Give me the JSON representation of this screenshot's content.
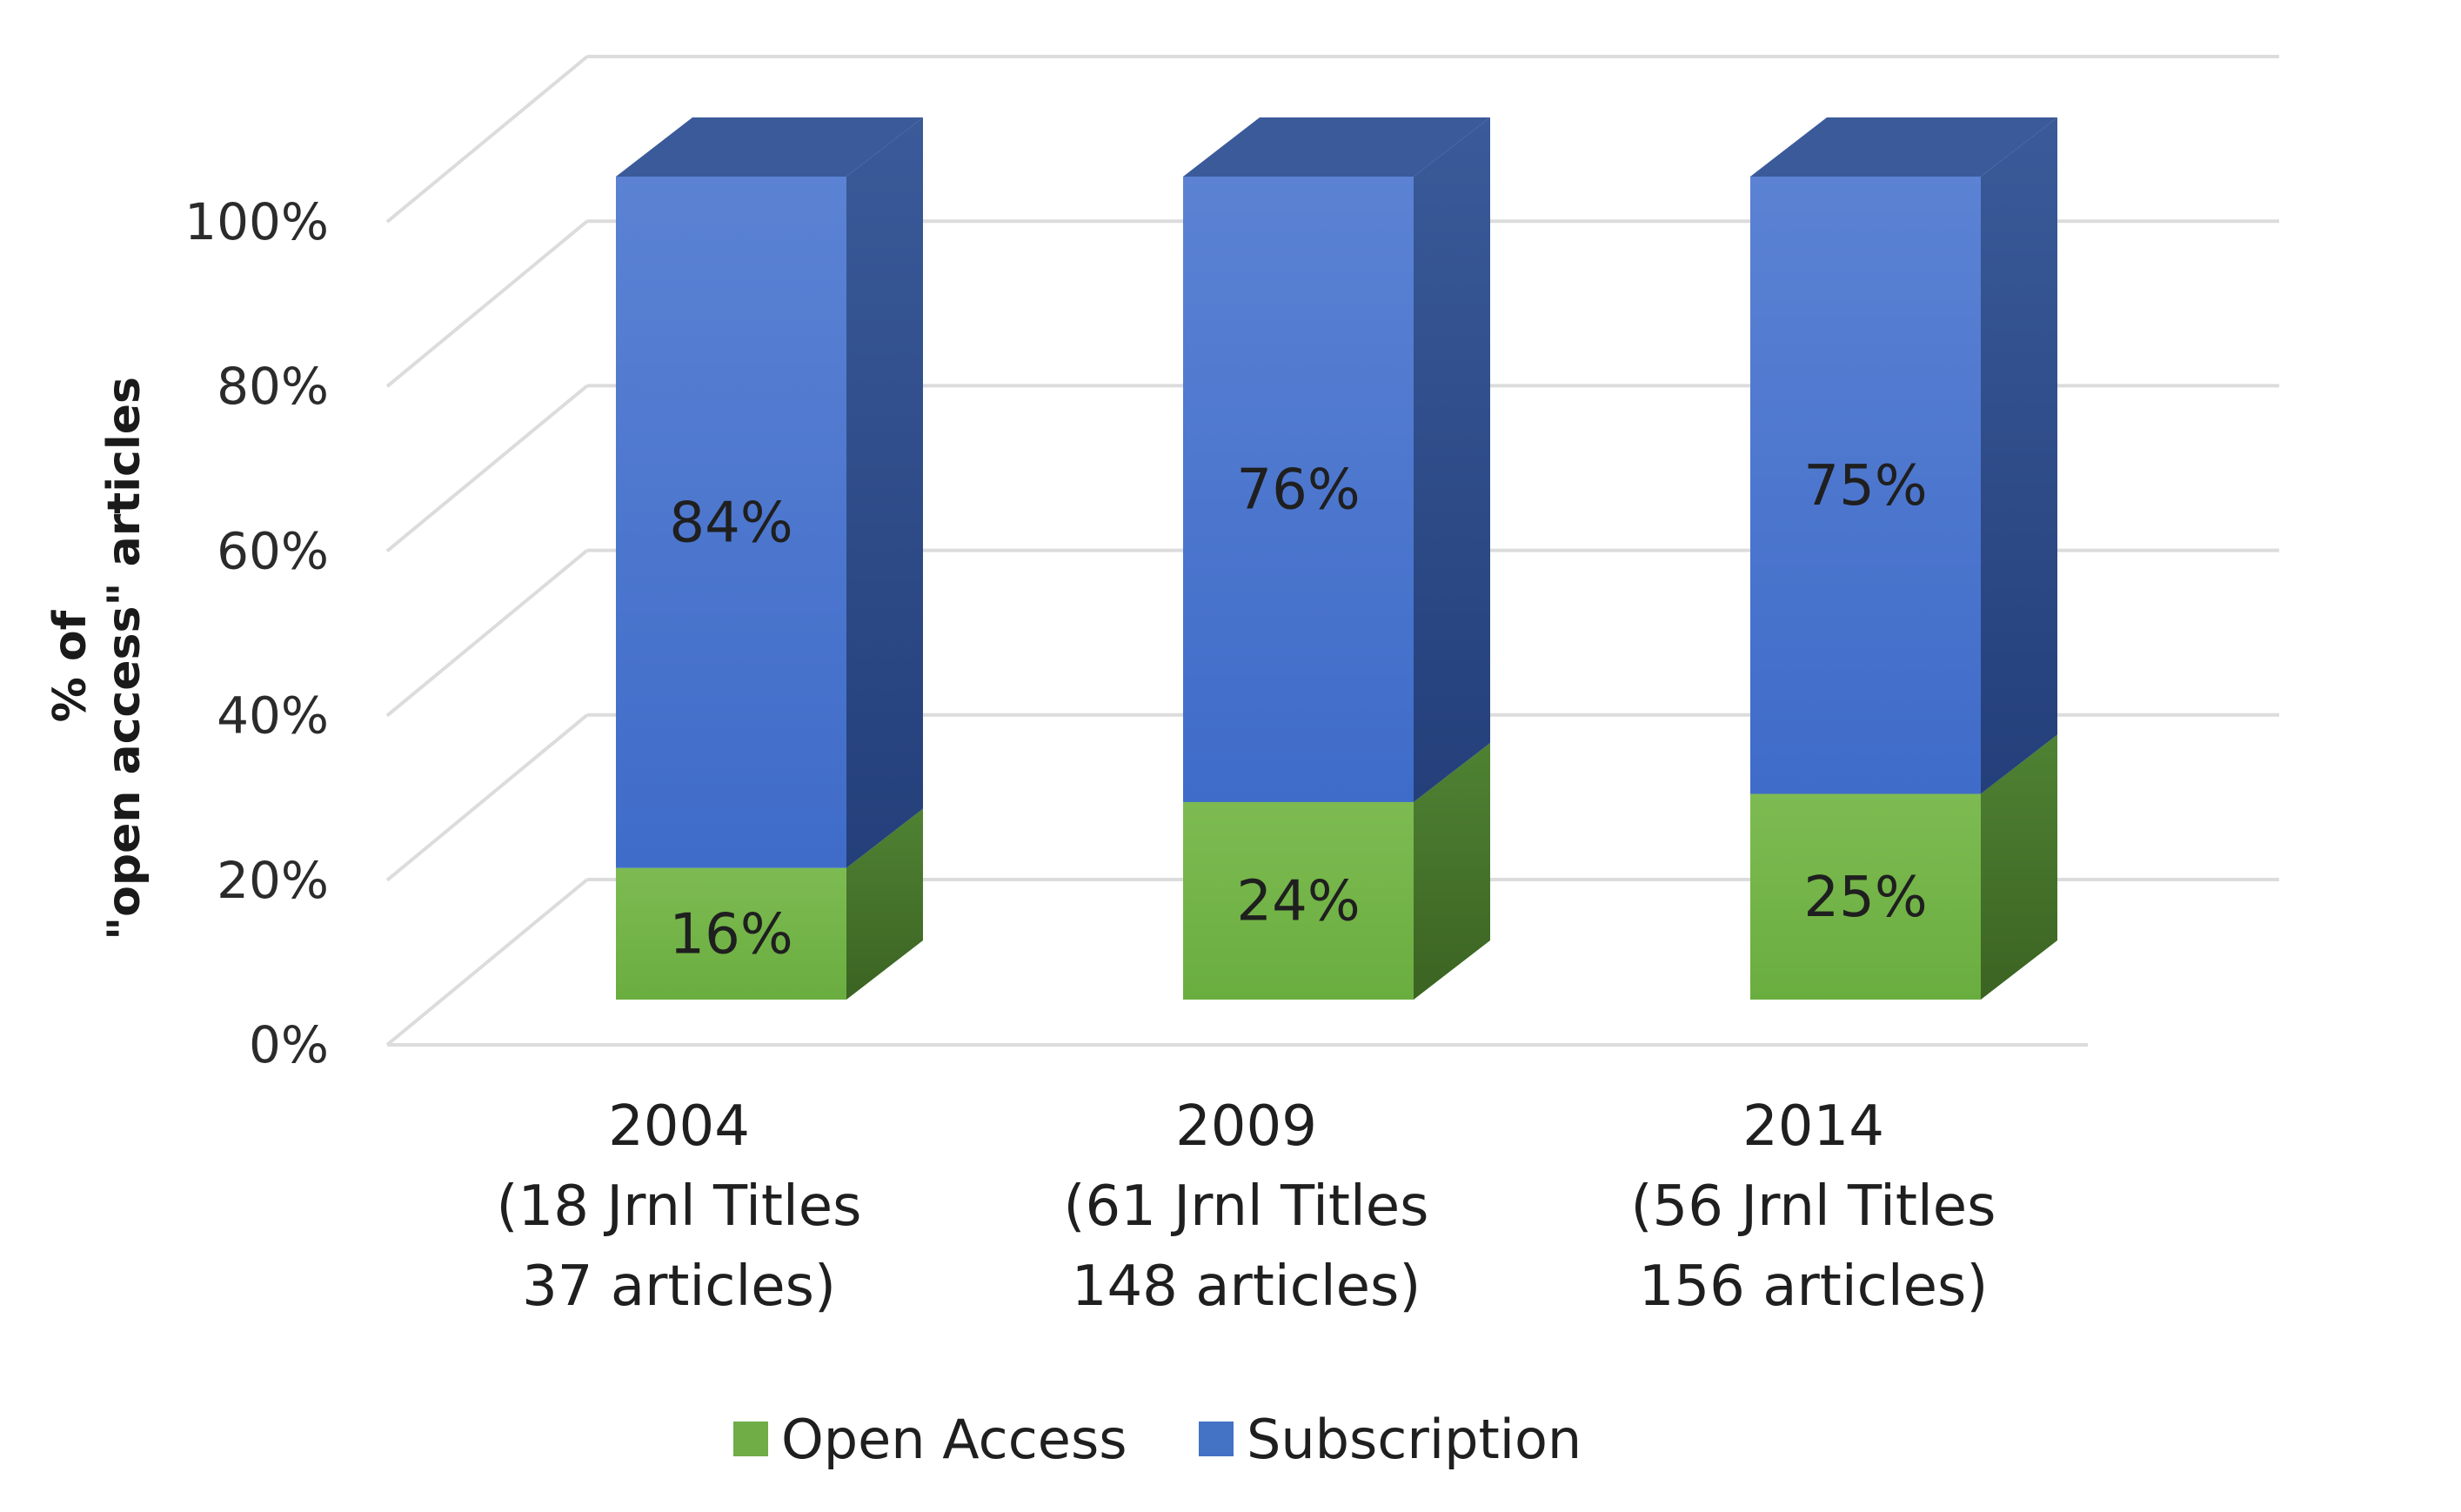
{
  "chart_data": {
    "type": "bar",
    "stacked": true,
    "style": "3d",
    "categories": [
      [
        "2004",
        "(18 Jrnl Titles",
        "37 articles)"
      ],
      [
        "2009",
        "(61 Jrnl Titles",
        "148 articles)"
      ],
      [
        "2014",
        "(56 Jrnl Titles",
        "156 articles)"
      ]
    ],
    "series": [
      {
        "name": "Open Access",
        "values": [
          16,
          24,
          25
        ],
        "labels": [
          "16%",
          "24%",
          "25%"
        ],
        "color": "#70ad47",
        "side_color": "#44702a",
        "top_color": "#5e9339"
      },
      {
        "name": "Subscription",
        "values": [
          84,
          76,
          75
        ],
        "labels": [
          "84%",
          "76%",
          "75%"
        ],
        "color": "#4472c4",
        "side_color": "#2c4c8e",
        "top_color": "#3b5a9a"
      }
    ],
    "ylabel": [
      "% of",
      "\"open access\" articles"
    ],
    "yticks": [
      "0%",
      "20%",
      "40%",
      "60%",
      "80%",
      "100%"
    ],
    "ylim": [
      0,
      100
    ],
    "grid": true,
    "legend_position": "bottom"
  }
}
